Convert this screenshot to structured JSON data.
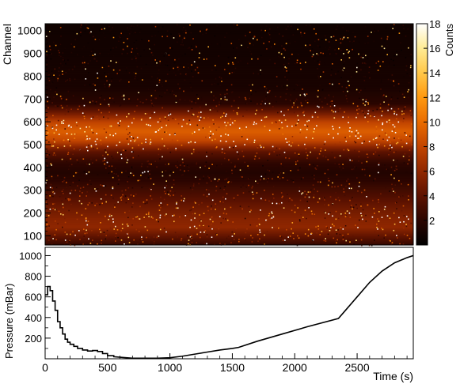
{
  "chart_data": [
    {
      "type": "heatmap",
      "ylabel": "Channel",
      "zlabel": "Counts",
      "ylim": [
        60,
        1030
      ],
      "zlim": [
        0,
        18
      ],
      "y_ticks": [
        100,
        200,
        300,
        400,
        500,
        600,
        700,
        800,
        900,
        1000
      ],
      "z_ticks": [
        2,
        4,
        6,
        8,
        10,
        12,
        14,
        16,
        18
      ],
      "colormap": [
        "#000000",
        "#2a0500",
        "#5c1200",
        "#8f2700",
        "#c04300",
        "#e86a00",
        "#ff9a10",
        "#ffc84a",
        "#ffec95",
        "#ffffff"
      ],
      "grid": false,
      "channel_profile": [
        {
          "channel": 60,
          "mean_counts": 2.3
        },
        {
          "channel": 100,
          "mean_counts": 4.2
        },
        {
          "channel": 140,
          "mean_counts": 6.0
        },
        {
          "channel": 175,
          "mean_counts": 5.6
        },
        {
          "channel": 230,
          "mean_counts": 4.5
        },
        {
          "channel": 280,
          "mean_counts": 3.4
        },
        {
          "channel": 340,
          "mean_counts": 2.1
        },
        {
          "channel": 380,
          "mean_counts": 1.6
        },
        {
          "channel": 420,
          "mean_counts": 2.1
        },
        {
          "channel": 470,
          "mean_counts": 4.0
        },
        {
          "channel": 520,
          "mean_counts": 8.2
        },
        {
          "channel": 560,
          "mean_counts": 9.4
        },
        {
          "channel": 600,
          "mean_counts": 8.0
        },
        {
          "channel": 640,
          "mean_counts": 4.8
        },
        {
          "channel": 680,
          "mean_counts": 2.0
        },
        {
          "channel": 750,
          "mean_counts": 1.2
        },
        {
          "channel": 900,
          "mean_counts": 0.9
        },
        {
          "channel": 1030,
          "mean_counts": 0.8
        }
      ]
    },
    {
      "type": "line",
      "xlabel": "Time (s)",
      "ylabel": "Pressure (mBar)",
      "xlim": [
        0,
        2950
      ],
      "ylim": [
        0,
        1080
      ],
      "x_ticks": [
        0,
        500,
        1000,
        1500,
        2000,
        2500
      ],
      "y_ticks": [
        200,
        400,
        600,
        800,
        1000
      ],
      "grid": false,
      "x": [
        0,
        20,
        40,
        60,
        80,
        100,
        120,
        140,
        160,
        180,
        200,
        230,
        260,
        300,
        340,
        380,
        420,
        460,
        500,
        550,
        600,
        650,
        700,
        800,
        900,
        1000,
        1100,
        1200,
        1300,
        1400,
        1500,
        1550,
        1700,
        1900,
        2100,
        2350,
        2400,
        2500,
        2600,
        2700,
        2800,
        2900,
        2950
      ],
      "y": [
        620,
        700,
        660,
        560,
        470,
        360,
        300,
        240,
        190,
        160,
        140,
        120,
        100,
        85,
        75,
        80,
        70,
        50,
        30,
        20,
        15,
        10,
        5,
        5,
        5,
        10,
        25,
        45,
        65,
        85,
        100,
        110,
        170,
        240,
        310,
        390,
        460,
        600,
        740,
        850,
        930,
        980,
        1000
      ]
    }
  ],
  "colorbar": {
    "label": "Counts",
    "ticks": [
      2,
      4,
      6,
      8,
      10,
      12,
      14,
      16,
      18
    ]
  }
}
